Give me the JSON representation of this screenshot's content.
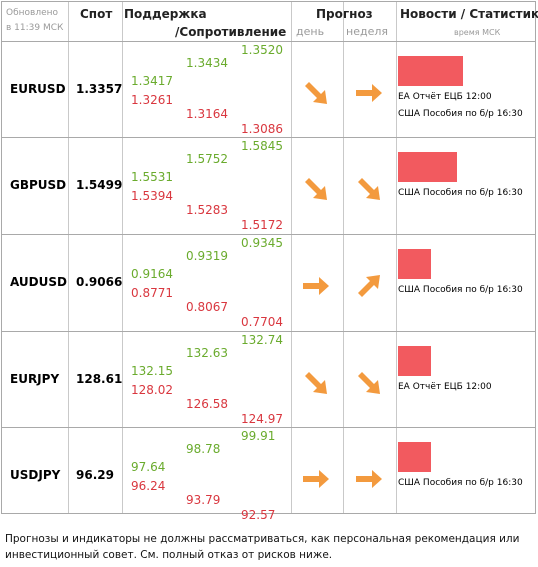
{
  "header": {
    "updated": "Обновлено\nв 11:39 МСК",
    "spot": "Спот",
    "support": "Поддержка",
    "resistance": "/Сопротивление",
    "forecast": "Прогноз",
    "day": "день",
    "week": "неделя",
    "news": "Новости / Статистика",
    "time": "время МСК"
  },
  "rows": [
    {
      "pair": "EURUSD",
      "spot": "1.3357",
      "s_high": "1.3417",
      "s_low": "1.3261",
      "m_high": "1.3434",
      "m_low": "1.3164",
      "r_high": "1.3520",
      "r_low": "1.3086",
      "day": "down-right",
      "week": "right",
      "bar": 0.5,
      "news": [
        "ЕА Отчёт ЕЦБ 12:00",
        "США Пособия по б/р 16:30"
      ]
    },
    {
      "pair": "GBPUSD",
      "spot": "1.5499",
      "s_high": "1.5531",
      "s_low": "1.5394",
      "m_high": "1.5752",
      "m_low": "1.5283",
      "r_high": "1.5845",
      "r_low": "1.5172",
      "day": "down-right",
      "week": "down-right",
      "bar": 0.45,
      "news": [
        "США Пособия по б/р 16:30"
      ]
    },
    {
      "pair": "AUDUSD",
      "spot": "0.9066",
      "s_high": "0.9164",
      "s_low": "0.8771",
      "m_high": "0.9319",
      "m_low": "0.8067",
      "r_high": "0.9345",
      "r_low": "0.7704",
      "day": "right",
      "week": "up-right",
      "bar": 0.25,
      "news": [
        "США Пособия по б/р 16:30"
      ]
    },
    {
      "pair": "EURJPY",
      "spot": "128.61",
      "s_high": "132.15",
      "s_low": "128.02",
      "m_high": "132.63",
      "m_low": "126.58",
      "r_high": "132.74",
      "r_low": "124.97",
      "day": "down-right",
      "week": "down-right",
      "bar": 0.25,
      "news": [
        "ЕА Отчёт ЕЦБ 12:00"
      ]
    },
    {
      "pair": "USDJPY",
      "spot": "96.29",
      "s_high": "97.64",
      "s_low": "96.24",
      "m_high": "98.78",
      "m_low": "93.79",
      "r_high": "99.91",
      "r_low": "92.57",
      "day": "right",
      "week": "right",
      "bar": 0.25,
      "news": [
        "США Пособия по б/р 16:30"
      ]
    }
  ],
  "colors": {
    "support": "#6aab2d",
    "resistance": "#d9373f",
    "arrow": "#f39a3e",
    "bar": "#f25a5f"
  },
  "disclaimer": "Прогнозы и индикаторы не должны рассматриваться, как персональная рекомендация или инвестиционный совет. См. полный отказ от рисков ниже."
}
